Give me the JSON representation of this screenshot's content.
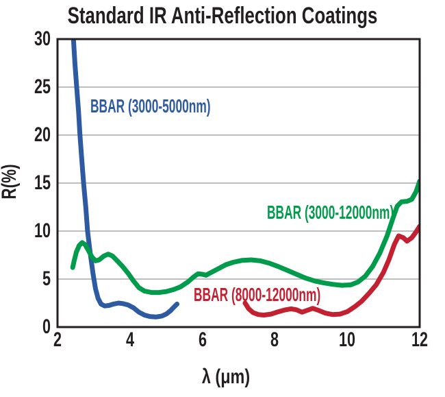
{
  "page": {
    "background": "#ffffff",
    "text_color": "#231f20"
  },
  "chart_data": {
    "type": "line",
    "title": "Standard IR Anti-Reflection Coatings",
    "xlabel": "λ (μm)",
    "ylabel": "R(%)",
    "xlim": [
      2,
      12
    ],
    "ylim": [
      0,
      30
    ],
    "xticks": [
      2,
      4,
      6,
      8,
      10,
      12
    ],
    "yticks": [
      0,
      5,
      10,
      15,
      20,
      25,
      30
    ],
    "grid": "horizontal-only",
    "grid_color": "#a9a9a9",
    "axis_color": "#231f20",
    "legend_position": "inline-curve-labels",
    "series": [
      {
        "name": "BBAR (3000-5000nm)",
        "color": "#2d5aa0",
        "points": [
          [
            2.42,
            31.5
          ],
          [
            2.44,
            30.0
          ],
          [
            2.48,
            27.5
          ],
          [
            2.53,
            25.0
          ],
          [
            2.58,
            22.5
          ],
          [
            2.62,
            20.0
          ],
          [
            2.67,
            17.5
          ],
          [
            2.72,
            15.0
          ],
          [
            2.78,
            12.5
          ],
          [
            2.83,
            10.0
          ],
          [
            2.9,
            7.8
          ],
          [
            2.98,
            5.6
          ],
          [
            3.05,
            4.0
          ],
          [
            3.12,
            3.0
          ],
          [
            3.2,
            2.4
          ],
          [
            3.3,
            2.2
          ],
          [
            3.42,
            2.25
          ],
          [
            3.55,
            2.4
          ],
          [
            3.68,
            2.5
          ],
          [
            3.8,
            2.45
          ],
          [
            3.95,
            2.3
          ],
          [
            4.1,
            2.0
          ],
          [
            4.25,
            1.55
          ],
          [
            4.4,
            1.25
          ],
          [
            4.55,
            1.1
          ],
          [
            4.72,
            1.05
          ],
          [
            4.88,
            1.15
          ],
          [
            5.0,
            1.35
          ],
          [
            5.12,
            1.7
          ],
          [
            5.22,
            2.1
          ],
          [
            5.3,
            2.4
          ]
        ]
      },
      {
        "name": "BBAR (3000-12000nm)",
        "color": "#009b4b",
        "points": [
          [
            2.42,
            6.2
          ],
          [
            2.46,
            6.9
          ],
          [
            2.52,
            7.8
          ],
          [
            2.6,
            8.5
          ],
          [
            2.68,
            8.8
          ],
          [
            2.76,
            8.6
          ],
          [
            2.85,
            8.0
          ],
          [
            2.95,
            7.3
          ],
          [
            3.05,
            6.9
          ],
          [
            3.15,
            7.0
          ],
          [
            3.28,
            7.4
          ],
          [
            3.4,
            7.6
          ],
          [
            3.52,
            7.4
          ],
          [
            3.65,
            6.9
          ],
          [
            3.8,
            6.3
          ],
          [
            3.95,
            5.6
          ],
          [
            4.1,
            4.8
          ],
          [
            4.25,
            4.1
          ],
          [
            4.4,
            3.75
          ],
          [
            4.6,
            3.6
          ],
          [
            4.8,
            3.6
          ],
          [
            5.0,
            3.7
          ],
          [
            5.2,
            3.9
          ],
          [
            5.4,
            4.2
          ],
          [
            5.6,
            4.7
          ],
          [
            5.75,
            5.2
          ],
          [
            5.88,
            5.55
          ],
          [
            6.0,
            5.5
          ],
          [
            6.1,
            5.4
          ],
          [
            6.25,
            5.7
          ],
          [
            6.45,
            6.1
          ],
          [
            6.65,
            6.5
          ],
          [
            6.85,
            6.75
          ],
          [
            7.1,
            6.95
          ],
          [
            7.35,
            7.0
          ],
          [
            7.6,
            6.9
          ],
          [
            7.85,
            6.65
          ],
          [
            8.1,
            6.3
          ],
          [
            8.35,
            5.9
          ],
          [
            8.6,
            5.5
          ],
          [
            8.85,
            5.1
          ],
          [
            9.1,
            4.8
          ],
          [
            9.35,
            4.6
          ],
          [
            9.6,
            4.45
          ],
          [
            9.85,
            4.35
          ],
          [
            10.1,
            4.4
          ],
          [
            10.3,
            4.7
          ],
          [
            10.5,
            5.3
          ],
          [
            10.7,
            6.3
          ],
          [
            10.9,
            7.7
          ],
          [
            11.1,
            9.5
          ],
          [
            11.25,
            11.2
          ],
          [
            11.38,
            12.6
          ],
          [
            11.5,
            13.05
          ],
          [
            11.65,
            13.1
          ],
          [
            11.78,
            13.3
          ],
          [
            11.9,
            14.1
          ],
          [
            12.0,
            15.2
          ]
        ]
      },
      {
        "name": "BBAR (8000-12000nm)",
        "color": "#c32031",
        "points": [
          [
            7.18,
            2.5
          ],
          [
            7.28,
            1.9
          ],
          [
            7.4,
            1.5
          ],
          [
            7.55,
            1.3
          ],
          [
            7.7,
            1.25
          ],
          [
            7.9,
            1.35
          ],
          [
            8.1,
            1.6
          ],
          [
            8.3,
            1.8
          ],
          [
            8.45,
            1.9
          ],
          [
            8.6,
            1.8
          ],
          [
            8.75,
            1.55
          ],
          [
            8.9,
            1.75
          ],
          [
            9.05,
            1.95
          ],
          [
            9.2,
            1.75
          ],
          [
            9.4,
            1.45
          ],
          [
            9.6,
            1.3
          ],
          [
            9.8,
            1.35
          ],
          [
            10.0,
            1.6
          ],
          [
            10.2,
            2.1
          ],
          [
            10.4,
            2.7
          ],
          [
            10.6,
            3.5
          ],
          [
            10.8,
            4.4
          ],
          [
            11.0,
            5.7
          ],
          [
            11.15,
            7.0
          ],
          [
            11.3,
            8.6
          ],
          [
            11.42,
            9.5
          ],
          [
            11.55,
            9.3
          ],
          [
            11.65,
            8.95
          ],
          [
            11.78,
            9.3
          ],
          [
            11.9,
            9.9
          ],
          [
            12.0,
            10.5
          ]
        ]
      }
    ]
  }
}
